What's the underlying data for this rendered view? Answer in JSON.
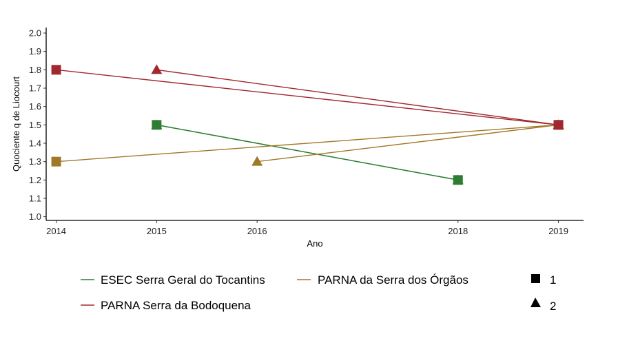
{
  "chart_data": {
    "type": "line",
    "title": "",
    "xlabel": "Ano",
    "ylabel": "Quociente q de Liocourt",
    "xlim": [
      2013.9,
      2019.25
    ],
    "ylim": [
      0.98,
      2.03
    ],
    "x_ticks": [
      2014,
      2015,
      2016,
      2018,
      2019
    ],
    "y_ticks": [
      1.0,
      1.1,
      1.2,
      1.3,
      1.4,
      1.5,
      1.6,
      1.7,
      1.8,
      1.9,
      2.0
    ],
    "grid": false,
    "legend_position": "bottom",
    "colors": {
      "ESEC Serra Geral do Tocantins": "#2e7d32",
      "PARNA da Serra dos Órgãos": "#a07828",
      "PARNA Serra da Bodoquena": "#a0282e",
      "shape_key": "#000000"
    },
    "series": [
      {
        "name": "ESEC Serra Geral do Tocantins",
        "shape": "square",
        "shape_label": "1",
        "x": [
          2015,
          2018
        ],
        "y": [
          1.5,
          1.2
        ]
      },
      {
        "name": "ESEC Serra Geral do Tocantins",
        "shape": "triangle",
        "shape_label": "2",
        "x": [
          2015,
          2018
        ],
        "y": [
          1.5,
          1.2
        ]
      },
      {
        "name": "PARNA da Serra dos Órgãos",
        "shape": "square",
        "shape_label": "1",
        "x": [
          2014,
          2019
        ],
        "y": [
          1.3,
          1.5
        ]
      },
      {
        "name": "PARNA da Serra dos Órgãos",
        "shape": "triangle",
        "shape_label": "2",
        "x": [
          2016,
          2019
        ],
        "y": [
          1.3,
          1.5
        ]
      },
      {
        "name": "PARNA Serra da Bodoquena",
        "shape": "square",
        "shape_label": "1",
        "x": [
          2014,
          2019
        ],
        "y": [
          1.8,
          1.5
        ]
      },
      {
        "name": "PARNA Serra da Bodoquena",
        "shape": "triangle",
        "shape_label": "2",
        "x": [
          2015,
          2019
        ],
        "y": [
          1.8,
          1.5
        ]
      }
    ],
    "legend": {
      "colour_entries": [
        "ESEC Serra Geral do Tocantins",
        "PARNA da Serra dos Órgãos",
        "PARNA Serra da Bodoquena"
      ],
      "shape_entries": [
        {
          "shape": "square",
          "label": "1"
        },
        {
          "shape": "triangle",
          "label": "2"
        }
      ]
    }
  }
}
